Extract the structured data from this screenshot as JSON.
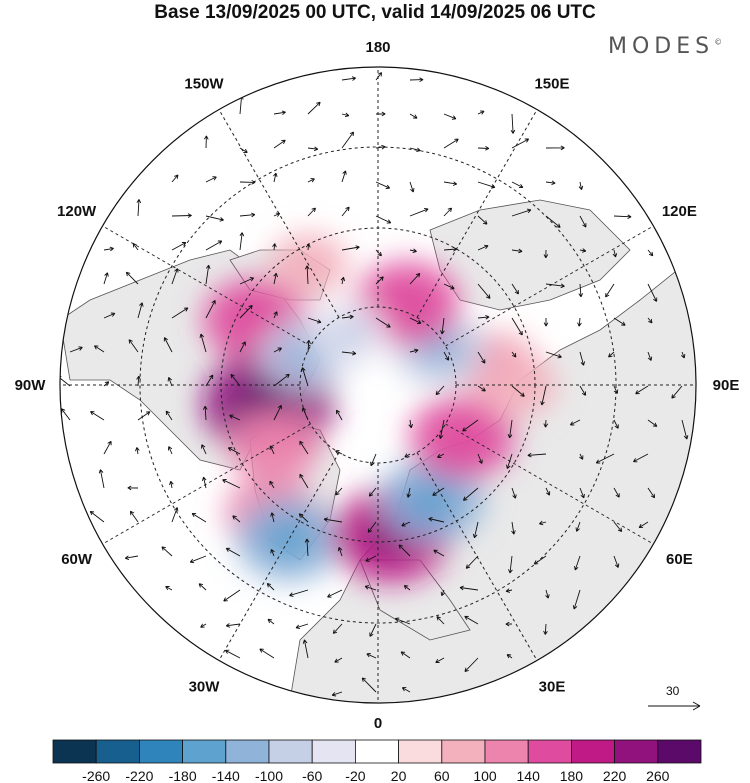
{
  "title": "Base 13/09/2025 00 UTC, valid 14/09/2025 06 UTC",
  "logo": "MODES",
  "logo_mark": "©",
  "longitude_labels": [
    {
      "text": "180",
      "lon": 180
    },
    {
      "text": "150E",
      "lon": 150
    },
    {
      "text": "120E",
      "lon": 120
    },
    {
      "text": "90E",
      "lon": 90
    },
    {
      "text": "60E",
      "lon": 60
    },
    {
      "text": "30E",
      "lon": 30
    },
    {
      "text": "0",
      "lon": 0
    },
    {
      "text": "30W",
      "lon": -30
    },
    {
      "text": "60W",
      "lon": -60
    },
    {
      "text": "90W",
      "lon": -90
    },
    {
      "text": "120W",
      "lon": -120
    },
    {
      "text": "150W",
      "lon": -150
    }
  ],
  "reference_vector": {
    "value": "30"
  },
  "colorbar": {
    "ticks": [
      "-260",
      "-220",
      "-180",
      "-140",
      "-100",
      "-60",
      "-20",
      "20",
      "60",
      "100",
      "140",
      "180",
      "220",
      "260"
    ],
    "colors": [
      "#0b3352",
      "#175f8e",
      "#2f84bb",
      "#5ea2cf",
      "#8fb3d9",
      "#c5cfe5",
      "#e4e4f2",
      "#ffffff",
      "#fadcde",
      "#f3b0bd",
      "#ec84ad",
      "#df4c9f",
      "#c01a86",
      "#92127d",
      "#5b0a6a"
    ]
  },
  "anomaly_centers": [
    {
      "lon": -118,
      "lat": 55,
      "value": 140
    },
    {
      "lon": -80,
      "lat": 62,
      "value": 220
    },
    {
      "lon": -60,
      "lat": 60,
      "value": 100
    },
    {
      "lon": -40,
      "lat": 48,
      "value": 100
    },
    {
      "lon": -30,
      "lat": 45,
      "value": -140
    },
    {
      "lon": 5,
      "lat": 52,
      "value": 180
    },
    {
      "lon": 25,
      "lat": 58,
      "value": -140
    },
    {
      "lon": 58,
      "lat": 65,
      "value": 140
    },
    {
      "lon": 100,
      "lat": 60,
      "value": 80
    },
    {
      "lon": 120,
      "lat": 72,
      "value": -100
    },
    {
      "lon": 160,
      "lat": 68,
      "value": 140
    },
    {
      "lon": -150,
      "lat": 55,
      "value": 60
    },
    {
      "lon": -112,
      "lat": 70,
      "value": -100
    },
    {
      "lon": -150,
      "lat": 75,
      "value": -60
    },
    {
      "lon": 90,
      "lat": 55,
      "value": 60
    }
  ]
}
